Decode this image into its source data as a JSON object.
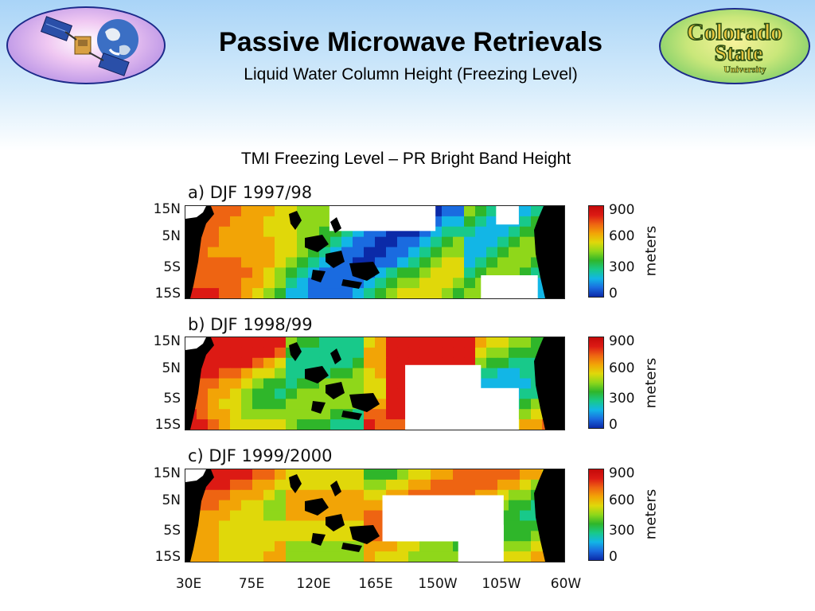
{
  "header": {
    "title": "Passive Microwave Retrievals",
    "subtitle": "Liquid Water Column Height (Freezing Level)",
    "logo_right_text": "Colorado State University"
  },
  "figure": {
    "title": "TMI Freezing Level – PR Bright Band Height",
    "panels": [
      {
        "label": "a) DJF 1997/98"
      },
      {
        "label": "b) DJF 1998/99"
      },
      {
        "label": "c) DJF 1999/2000"
      }
    ],
    "lat_labels": [
      "15N",
      "5N",
      "5S",
      "15S"
    ],
    "lon_labels": [
      "30E",
      "75E",
      "120E",
      "165E",
      "150W",
      "105W",
      "60W"
    ],
    "colorbar": {
      "ticks": [
        "900",
        "600",
        "300",
        "0"
      ],
      "units": "meters",
      "colors": [
        "#0b2aa8",
        "#1a6be0",
        "#12b6e6",
        "#18c98a",
        "#2fb62a",
        "#8fd71a",
        "#e0d80a",
        "#f2a406",
        "#ee6412",
        "#dc1a14"
      ]
    }
  },
  "chart_data": {
    "type": "heatmap",
    "title": "TMI Freezing Level – PR Bright Band Height",
    "x_ticks": [
      "30E",
      "75E",
      "120E",
      "165E",
      "150W",
      "105W",
      "60W"
    ],
    "y_ticks": [
      "15N",
      "5N",
      "5S",
      "15S"
    ],
    "colorbar_ticks": [
      900,
      600,
      300,
      0
    ],
    "colorbar_label": "meters",
    "panels": [
      "a) DJF 1997/98",
      "b) DJF 1998/99",
      "c) DJF 1999/2000"
    ]
  }
}
